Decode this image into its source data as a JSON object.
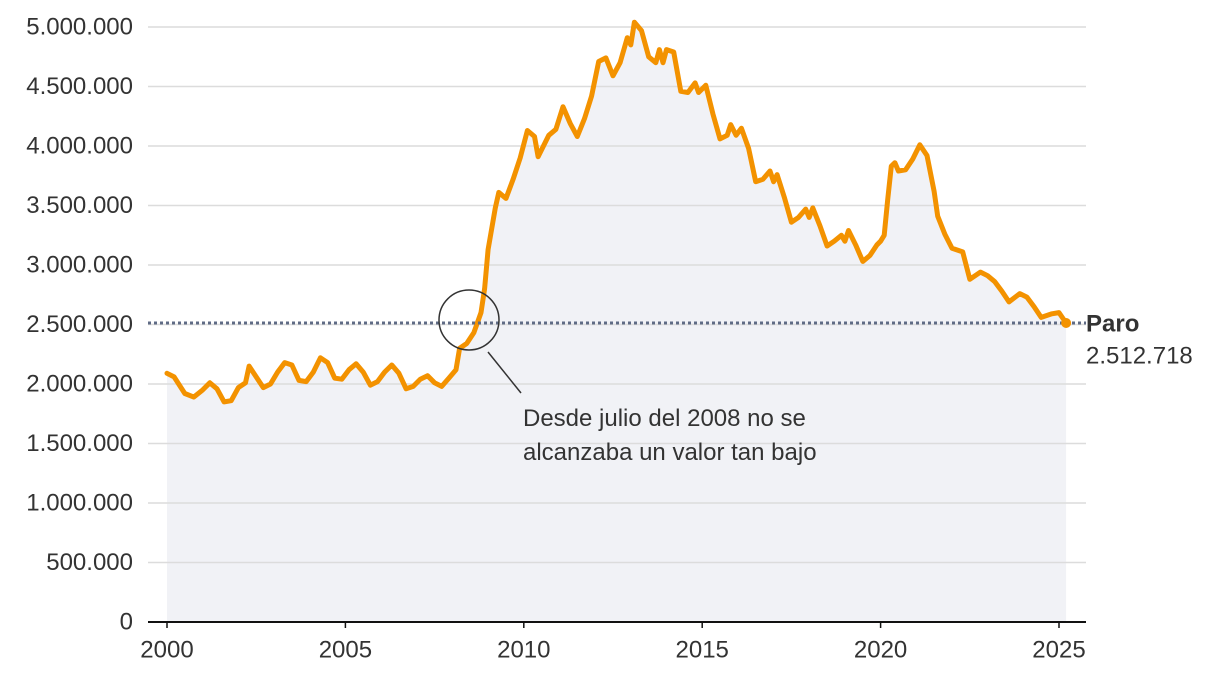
{
  "chart_data": {
    "type": "line",
    "x": [
      2000.0,
      2000.2,
      2000.5,
      2000.75,
      2001.0,
      2001.2,
      2001.4,
      2001.6,
      2001.8,
      2002.0,
      2002.2,
      2002.3,
      2002.5,
      2002.7,
      2002.9,
      2003.1,
      2003.3,
      2003.5,
      2003.7,
      2003.9,
      2004.1,
      2004.3,
      2004.5,
      2004.7,
      2004.9,
      2005.1,
      2005.3,
      2005.5,
      2005.7,
      2005.9,
      2006.1,
      2006.3,
      2006.5,
      2006.7,
      2006.9,
      2007.1,
      2007.3,
      2007.5,
      2007.7,
      2007.9,
      2008.1,
      2008.2,
      2008.4,
      2008.6,
      2008.8,
      2008.9,
      2009.0,
      2009.2,
      2009.3,
      2009.5,
      2009.7,
      2009.9,
      2010.1,
      2010.3,
      2010.4,
      2010.7,
      2010.9,
      2011.1,
      2011.3,
      2011.5,
      2011.7,
      2011.9,
      2012.1,
      2012.3,
      2012.5,
      2012.7,
      2012.9,
      2013.0,
      2013.1,
      2013.3,
      2013.5,
      2013.7,
      2013.8,
      2013.9,
      2014.0,
      2014.2,
      2014.4,
      2014.6,
      2014.8,
      2014.9,
      2015.1,
      2015.3,
      2015.5,
      2015.7,
      2015.8,
      2015.95,
      2016.1,
      2016.3,
      2016.5,
      2016.7,
      2016.9,
      2017.0,
      2017.1,
      2017.3,
      2017.5,
      2017.7,
      2017.9,
      2018.0,
      2018.1,
      2018.3,
      2018.5,
      2018.7,
      2018.9,
      2019.0,
      2019.1,
      2019.3,
      2019.5,
      2019.7,
      2019.9,
      2020.0,
      2020.1,
      2020.2,
      2020.3,
      2020.4,
      2020.5,
      2020.7,
      2020.9,
      2021.1,
      2021.3,
      2021.5,
      2021.6,
      2021.8,
      2022.0,
      2022.3,
      2022.5,
      2022.8,
      2023.0,
      2023.2,
      2023.4,
      2023.6,
      2023.9,
      2024.1,
      2024.3,
      2024.5,
      2024.8,
      2025.0,
      2025.2
    ],
    "values": [
      2090000,
      2060000,
      1920000,
      1890000,
      1950000,
      2010000,
      1960000,
      1850000,
      1860000,
      1970000,
      2010000,
      2150000,
      2060000,
      1970000,
      2000000,
      2100000,
      2180000,
      2160000,
      2030000,
      2020000,
      2100000,
      2220000,
      2180000,
      2050000,
      2040000,
      2120000,
      2170000,
      2100000,
      1990000,
      2020000,
      2100000,
      2160000,
      2090000,
      1960000,
      1980000,
      2040000,
      2070000,
      2010000,
      1980000,
      2050000,
      2120000,
      2300000,
      2340000,
      2430000,
      2600000,
      2800000,
      3130000,
      3480000,
      3610000,
      3560000,
      3720000,
      3900000,
      4130000,
      4080000,
      3910000,
      4090000,
      4140000,
      4330000,
      4190000,
      4080000,
      4230000,
      4420000,
      4710000,
      4740000,
      4590000,
      4700000,
      4910000,
      4850000,
      5040000,
      4970000,
      4750000,
      4700000,
      4810000,
      4700000,
      4810000,
      4790000,
      4460000,
      4450000,
      4530000,
      4450000,
      4510000,
      4270000,
      4060000,
      4090000,
      4180000,
      4090000,
      4150000,
      3980000,
      3700000,
      3720000,
      3790000,
      3700000,
      3760000,
      3570000,
      3360000,
      3400000,
      3470000,
      3400000,
      3480000,
      3330000,
      3160000,
      3200000,
      3250000,
      3200000,
      3290000,
      3170000,
      3030000,
      3080000,
      3170000,
      3200000,
      3250000,
      3550000,
      3830000,
      3860000,
      3790000,
      3800000,
      3890000,
      4010000,
      3920000,
      3620000,
      3410000,
      3260000,
      3140000,
      3110000,
      2880000,
      2940000,
      2910000,
      2860000,
      2780000,
      2690000,
      2760000,
      2730000,
      2650000,
      2560000,
      2590000,
      2600000,
      2512718
    ],
    "color": "#f39200",
    "area_color": "#f1f2f6",
    "xlim": [
      2000,
      2025
    ],
    "xticks": [
      2000,
      2005,
      2010,
      2015,
      2020,
      2025
    ],
    "ylim": [
      0,
      5000000
    ],
    "yticks": [
      0,
      {
        "value": 500000,
        "label": "500.000"
      },
      {
        "value": 1000000,
        "label": "1.000.000"
      },
      {
        "value": 1500000,
        "label": "1.500.000"
      },
      {
        "value": 2000000,
        "label": "2.000.000"
      },
      {
        "value": 2500000,
        "label": "2.500.000"
      },
      {
        "value": 3000000,
        "label": "3.000.000"
      },
      {
        "value": 3500000,
        "label": "3.500.000"
      },
      {
        "value": 4000000,
        "label": "4.000.000"
      },
      {
        "value": 4500000,
        "label": "4.500.000"
      },
      {
        "value": 5000000,
        "label": "5.000.000"
      }
    ],
    "grid": true,
    "reference": {
      "name": "Paro",
      "value": 2512718,
      "label": "2.512.718",
      "color": "#5f6b85"
    },
    "annotation": "Desde julio del 2008 no se alcanzaba un valor tan bajo"
  }
}
